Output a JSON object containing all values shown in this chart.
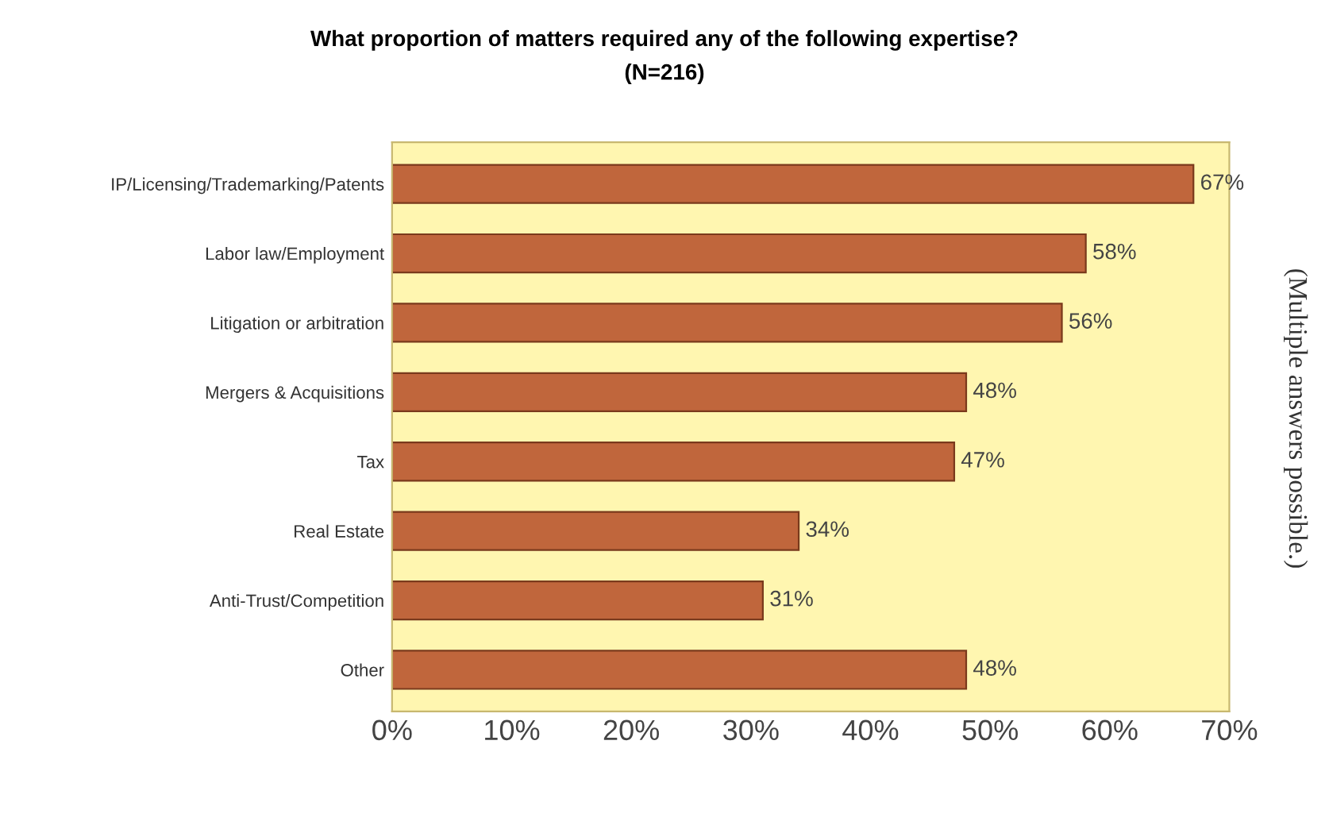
{
  "chart_data": {
    "type": "bar",
    "orientation": "horizontal",
    "title": "What proportion of matters required any of the following expertise?",
    "subtitle": "(N=216)",
    "categories": [
      "IP/Licensing/Trademarking/Patents",
      "Labor law/Employment",
      "Litigation or arbitration",
      "Mergers & Acquisitions",
      "Tax",
      "Real Estate",
      "Anti-Trust/Competition",
      "Other"
    ],
    "values": [
      67,
      58,
      56,
      48,
      47,
      34,
      31,
      48
    ],
    "value_labels": [
      "67%",
      "58%",
      "56%",
      "48%",
      "47%",
      "34%",
      "31%",
      "48%"
    ],
    "color": "#c0663c",
    "xlim": [
      0,
      70
    ],
    "xticks": [
      {
        "value": 0,
        "label": "0%"
      },
      {
        "value": 10,
        "label": "10%"
      },
      {
        "value": 20,
        "label": "20%"
      },
      {
        "value": 30,
        "label": "30%"
      },
      {
        "value": 40,
        "label": "40%"
      },
      {
        "value": 50,
        "label": "50%"
      },
      {
        "value": 60,
        "label": "60%"
      },
      {
        "value": 70,
        "label": "70%"
      }
    ],
    "annotations": [
      "(Multiple answers possible.)"
    ],
    "grid": false,
    "legend": false
  }
}
